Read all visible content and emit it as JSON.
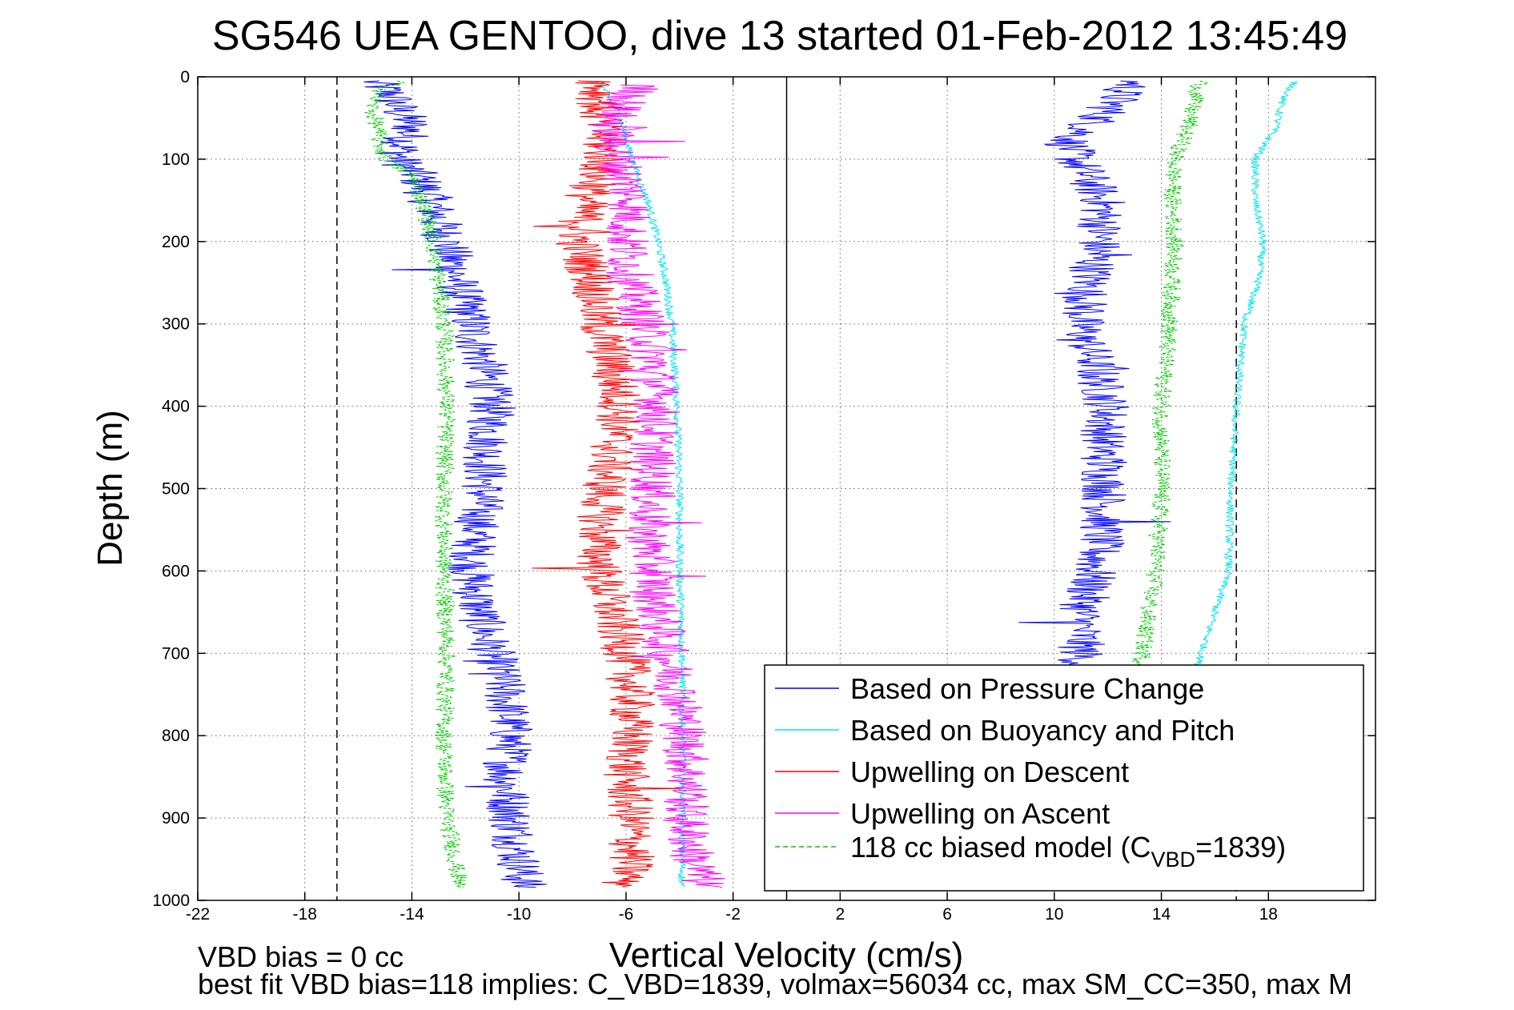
{
  "chart_data": {
    "type": "line",
    "title": "SG546 UEA GENTOO, dive 13 started 01-Feb-2012 13:45:49",
    "xlabel": "Vertical Velocity (cm/s)",
    "ylabel": "Depth (m)",
    "xlim": [
      -22,
      22
    ],
    "ylim": [
      0,
      1000
    ],
    "y_reversed": true,
    "xticks": [
      -22,
      -18,
      -14,
      -10,
      -6,
      -2,
      2,
      6,
      10,
      14,
      18
    ],
    "yticks": [
      0,
      100,
      200,
      300,
      400,
      500,
      600,
      700,
      800,
      900,
      1000
    ],
    "grid": true,
    "legend_position": "bottom-right",
    "annotations": [
      "VBD bias = 0 cc",
      "best fit VBD bias=118 implies: C_VBD=1839, volmax=56034 cc, max SM_CC=350, max M"
    ],
    "reference_lines": [
      {
        "x": -16.8,
        "style": "dashed",
        "color": "#000000"
      },
      {
        "x": 16.8,
        "style": "dashed",
        "color": "#000000"
      },
      {
        "x": 0,
        "style": "solid",
        "color": "#000000"
      }
    ],
    "series": [
      {
        "name": "Based on Pressure Change",
        "color": "#0000ff",
        "style": "solid",
        "noise": 0.9,
        "descent": [
          {
            "depth": 5,
            "v": -15.5
          },
          {
            "depth": 20,
            "v": -14.8
          },
          {
            "depth": 40,
            "v": -14.5
          },
          {
            "depth": 60,
            "v": -14.0
          },
          {
            "depth": 80,
            "v": -14.3
          },
          {
            "depth": 100,
            "v": -14.5
          },
          {
            "depth": 120,
            "v": -13.8
          },
          {
            "depth": 150,
            "v": -13.3
          },
          {
            "depth": 200,
            "v": -12.7
          },
          {
            "depth": 250,
            "v": -12.3
          },
          {
            "depth": 300,
            "v": -11.8
          },
          {
            "depth": 350,
            "v": -11.3
          },
          {
            "depth": 400,
            "v": -11.0
          },
          {
            "depth": 450,
            "v": -11.2
          },
          {
            "depth": 500,
            "v": -11.3
          },
          {
            "depth": 550,
            "v": -11.6
          },
          {
            "depth": 600,
            "v": -11.8
          },
          {
            "depth": 650,
            "v": -11.5
          },
          {
            "depth": 700,
            "v": -11.0
          },
          {
            "depth": 750,
            "v": -10.5
          },
          {
            "depth": 800,
            "v": -10.3
          },
          {
            "depth": 850,
            "v": -10.5
          },
          {
            "depth": 900,
            "v": -10.3
          },
          {
            "depth": 950,
            "v": -10.0
          },
          {
            "depth": 985,
            "v": -9.8
          }
        ],
        "ascent": [
          {
            "depth": 5,
            "v": 13.0
          },
          {
            "depth": 20,
            "v": 12.5
          },
          {
            "depth": 40,
            "v": 12.0
          },
          {
            "depth": 60,
            "v": 11.3
          },
          {
            "depth": 80,
            "v": 10.5
          },
          {
            "depth": 100,
            "v": 10.8
          },
          {
            "depth": 150,
            "v": 11.8
          },
          {
            "depth": 200,
            "v": 11.7
          },
          {
            "depth": 250,
            "v": 11.3
          },
          {
            "depth": 300,
            "v": 11.0
          },
          {
            "depth": 350,
            "v": 11.5
          },
          {
            "depth": 400,
            "v": 12.0
          },
          {
            "depth": 450,
            "v": 11.8
          },
          {
            "depth": 500,
            "v": 11.9
          },
          {
            "depth": 550,
            "v": 11.8
          },
          {
            "depth": 600,
            "v": 11.5
          },
          {
            "depth": 650,
            "v": 11.0
          },
          {
            "depth": 700,
            "v": 11.0
          },
          {
            "depth": 720,
            "v": 11.0
          }
        ]
      },
      {
        "name": "Based on Buoyancy and Pitch",
        "color": "#00e5ee",
        "style": "solid",
        "noise": 0.15,
        "descent": [
          {
            "depth": 5,
            "v": -7.0
          },
          {
            "depth": 50,
            "v": -6.2
          },
          {
            "depth": 100,
            "v": -5.8
          },
          {
            "depth": 150,
            "v": -5.2
          },
          {
            "depth": 200,
            "v": -4.8
          },
          {
            "depth": 250,
            "v": -4.5
          },
          {
            "depth": 300,
            "v": -4.3
          },
          {
            "depth": 400,
            "v": -4.1
          },
          {
            "depth": 500,
            "v": -4.0
          },
          {
            "depth": 600,
            "v": -4.0
          },
          {
            "depth": 700,
            "v": -3.9
          },
          {
            "depth": 800,
            "v": -3.9
          },
          {
            "depth": 900,
            "v": -3.9
          },
          {
            "depth": 985,
            "v": -3.9
          }
        ],
        "ascent": [
          {
            "depth": 5,
            "v": 19.0
          },
          {
            "depth": 30,
            "v": 18.5
          },
          {
            "depth": 60,
            "v": 18.3
          },
          {
            "depth": 100,
            "v": 17.5
          },
          {
            "depth": 150,
            "v": 17.5
          },
          {
            "depth": 200,
            "v": 17.8
          },
          {
            "depth": 250,
            "v": 17.6
          },
          {
            "depth": 300,
            "v": 17.1
          },
          {
            "depth": 400,
            "v": 16.8
          },
          {
            "depth": 500,
            "v": 16.6
          },
          {
            "depth": 600,
            "v": 16.5
          },
          {
            "depth": 650,
            "v": 16.0
          },
          {
            "depth": 700,
            "v": 15.5
          },
          {
            "depth": 720,
            "v": 15.3
          }
        ]
      },
      {
        "name": "Upwelling on Descent",
        "color": "#ff0000",
        "style": "solid",
        "noise": 0.9,
        "descent": [
          {
            "depth": 5,
            "v": -7.0
          },
          {
            "depth": 50,
            "v": -7.0
          },
          {
            "depth": 100,
            "v": -6.8
          },
          {
            "depth": 150,
            "v": -7.5
          },
          {
            "depth": 200,
            "v": -7.8
          },
          {
            "depth": 250,
            "v": -7.2
          },
          {
            "depth": 300,
            "v": -7.0
          },
          {
            "depth": 350,
            "v": -6.5
          },
          {
            "depth": 400,
            "v": -6.2
          },
          {
            "depth": 450,
            "v": -6.5
          },
          {
            "depth": 500,
            "v": -6.8
          },
          {
            "depth": 550,
            "v": -7.0
          },
          {
            "depth": 600,
            "v": -7.0
          },
          {
            "depth": 650,
            "v": -6.5
          },
          {
            "depth": 700,
            "v": -6.0
          },
          {
            "depth": 750,
            "v": -5.8
          },
          {
            "depth": 800,
            "v": -5.8
          },
          {
            "depth": 850,
            "v": -6.0
          },
          {
            "depth": 900,
            "v": -5.8
          },
          {
            "depth": 950,
            "v": -5.8
          },
          {
            "depth": 985,
            "v": -6.0
          }
        ],
        "ascent": []
      },
      {
        "name": "Upwelling on Ascent",
        "color": "#ff00ff",
        "style": "solid",
        "noise": 0.9,
        "descent": [
          {
            "depth": 10,
            "v": -5.5
          },
          {
            "depth": 50,
            "v": -6.5
          },
          {
            "depth": 100,
            "v": -6.3
          },
          {
            "depth": 150,
            "v": -5.8
          },
          {
            "depth": 200,
            "v": -6.0
          },
          {
            "depth": 250,
            "v": -5.8
          },
          {
            "depth": 300,
            "v": -5.3
          },
          {
            "depth": 350,
            "v": -5.0
          },
          {
            "depth": 400,
            "v": -4.8
          },
          {
            "depth": 450,
            "v": -5.0
          },
          {
            "depth": 500,
            "v": -5.0
          },
          {
            "depth": 550,
            "v": -5.2
          },
          {
            "depth": 600,
            "v": -5.0
          },
          {
            "depth": 650,
            "v": -4.8
          },
          {
            "depth": 700,
            "v": -4.5
          },
          {
            "depth": 750,
            "v": -4.0
          },
          {
            "depth": 800,
            "v": -3.8
          },
          {
            "depth": 850,
            "v": -3.7
          },
          {
            "depth": 900,
            "v": -3.8
          },
          {
            "depth": 950,
            "v": -3.5
          },
          {
            "depth": 985,
            "v": -3.0
          }
        ],
        "ascent": []
      },
      {
        "name": "118 cc biased model (C",
        "name_sub": "VBD",
        "name_suffix": "=1839)",
        "color": "#00cc00",
        "style": "dashed",
        "noise": 0.35,
        "descent": [
          {
            "depth": 5,
            "v": -14.5
          },
          {
            "depth": 20,
            "v": -15.3
          },
          {
            "depth": 40,
            "v": -15.5
          },
          {
            "depth": 60,
            "v": -15.3
          },
          {
            "depth": 80,
            "v": -15.2
          },
          {
            "depth": 100,
            "v": -15.0
          },
          {
            "depth": 120,
            "v": -14.0
          },
          {
            "depth": 150,
            "v": -13.6
          },
          {
            "depth": 200,
            "v": -13.2
          },
          {
            "depth": 300,
            "v": -12.8
          },
          {
            "depth": 400,
            "v": -12.7
          },
          {
            "depth": 500,
            "v": -12.8
          },
          {
            "depth": 600,
            "v": -12.8
          },
          {
            "depth": 700,
            "v": -12.7
          },
          {
            "depth": 800,
            "v": -12.8
          },
          {
            "depth": 900,
            "v": -12.7
          },
          {
            "depth": 930,
            "v": -12.5
          },
          {
            "depth": 985,
            "v": -12.2
          }
        ],
        "ascent": [
          {
            "depth": 5,
            "v": 15.5
          },
          {
            "depth": 30,
            "v": 15.2
          },
          {
            "depth": 60,
            "v": 15.0
          },
          {
            "depth": 100,
            "v": 14.5
          },
          {
            "depth": 150,
            "v": 14.4
          },
          {
            "depth": 200,
            "v": 14.5
          },
          {
            "depth": 300,
            "v": 14.3
          },
          {
            "depth": 400,
            "v": 14.0
          },
          {
            "depth": 500,
            "v": 14.0
          },
          {
            "depth": 600,
            "v": 13.8
          },
          {
            "depth": 650,
            "v": 13.5
          },
          {
            "depth": 700,
            "v": 13.3
          },
          {
            "depth": 720,
            "v": 13.2
          }
        ]
      }
    ]
  }
}
